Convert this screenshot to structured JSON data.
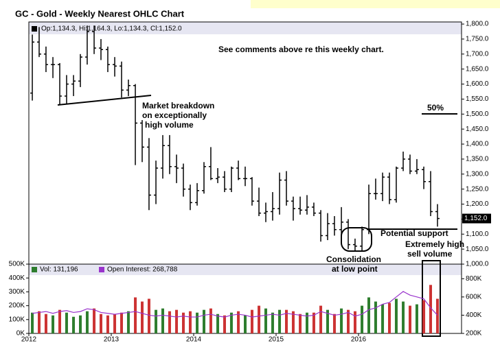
{
  "chart_data": [
    {
      "type": "ohlc",
      "title": "GC - Gold - Weekly Nearest OHLC Chart",
      "info": "Op:1,134.3, Hi:1,164.3, Lo:1,134.3, Cl:1,152.0",
      "price_tag": "1,152.0",
      "color": "#000000",
      "xlim": [
        2012,
        2017.25
      ],
      "ylim": [
        1000,
        1807
      ],
      "yticks": [
        {
          "value": 1000,
          "label": "1,000.0"
        },
        {
          "value": 1050,
          "label": "1,050.0"
        },
        {
          "value": 1100,
          "label": "1,100.0"
        },
        {
          "value": 1150,
          "label": "1,150.0"
        },
        {
          "value": 1200,
          "label": "1,200.0"
        },
        {
          "value": 1250,
          "label": "1,250.0"
        },
        {
          "value": 1300,
          "label": "1,300.0"
        },
        {
          "value": 1350,
          "label": "1,350.0"
        },
        {
          "value": 1400,
          "label": "1,400.0"
        },
        {
          "value": 1450,
          "label": "1,450.0"
        },
        {
          "value": 1500,
          "label": "1,500.0"
        },
        {
          "value": 1550,
          "label": "1,550.0"
        },
        {
          "value": 1600,
          "label": "1,600.0"
        },
        {
          "value": 1650,
          "label": "1,650.0"
        },
        {
          "value": 1700,
          "label": "1,700.0"
        },
        {
          "value": 1750,
          "label": "1,750.0"
        },
        {
          "value": 1800,
          "label": "1,800.0"
        }
      ],
      "x": [
        2012.042,
        2012.125,
        2012.208,
        2012.292,
        2012.375,
        2012.458,
        2012.542,
        2012.625,
        2012.708,
        2012.792,
        2012.875,
        2012.958,
        2013.042,
        2013.125,
        2013.208,
        2013.292,
        2013.375,
        2013.458,
        2013.542,
        2013.625,
        2013.708,
        2013.792,
        2013.875,
        2013.958,
        2014.042,
        2014.125,
        2014.208,
        2014.292,
        2014.375,
        2014.458,
        2014.542,
        2014.625,
        2014.708,
        2014.792,
        2014.875,
        2014.958,
        2015.042,
        2015.125,
        2015.208,
        2015.292,
        2015.375,
        2015.458,
        2015.542,
        2015.625,
        2015.708,
        2015.792,
        2015.875,
        2015.958,
        2016.042,
        2016.125,
        2016.208,
        2016.292,
        2016.375,
        2016.458,
        2016.542,
        2016.625,
        2016.708,
        2016.792,
        2016.875,
        2016.958
      ],
      "open": [
        1570,
        1740,
        1700,
        1665,
        1665,
        1560,
        1600,
        1610,
        1690,
        1775,
        1720,
        1715,
        1665,
        1660,
        1580,
        1595,
        1470,
        1390,
        1230,
        1320,
        1395,
        1325,
        1320,
        1250,
        1205,
        1245,
        1325,
        1285,
        1290,
        1250,
        1320,
        1285,
        1285,
        1210,
        1170,
        1175,
        1185,
        1280,
        1210,
        1185,
        1180,
        1190,
        1170,
        1095,
        1135,
        1115,
        1140,
        1065,
        1060,
        1115,
        1235,
        1235,
        1290,
        1215,
        1320,
        1350,
        1310,
        1315,
        1275,
        1175
      ],
      "high": [
        1765,
        1790,
        1725,
        1690,
        1670,
        1630,
        1630,
        1700,
        1795,
        1795,
        1750,
        1725,
        1690,
        1675,
        1615,
        1600,
        1480,
        1420,
        1345,
        1430,
        1430,
        1365,
        1335,
        1265,
        1270,
        1340,
        1390,
        1320,
        1310,
        1325,
        1345,
        1325,
        1290,
        1255,
        1205,
        1240,
        1305,
        1310,
        1225,
        1225,
        1230,
        1205,
        1180,
        1170,
        1160,
        1190,
        1150,
        1085,
        1125,
        1265,
        1285,
        1305,
        1305,
        1325,
        1375,
        1365,
        1350,
        1325,
        1310,
        1200
      ],
      "low": [
        1545,
        1690,
        1640,
        1620,
        1530,
        1535,
        1560,
        1590,
        1665,
        1700,
        1680,
        1640,
        1625,
        1555,
        1560,
        1330,
        1340,
        1180,
        1200,
        1285,
        1300,
        1270,
        1225,
        1180,
        1195,
        1235,
        1280,
        1270,
        1240,
        1240,
        1280,
        1260,
        1195,
        1160,
        1140,
        1145,
        1165,
        1195,
        1145,
        1165,
        1165,
        1160,
        1075,
        1080,
        1095,
        1095,
        1050,
        1045,
        1045,
        1100,
        1215,
        1210,
        1200,
        1205,
        1310,
        1300,
        1300,
        1250,
        1160,
        1125
      ],
      "close": [
        1740,
        1700,
        1665,
        1665,
        1560,
        1600,
        1610,
        1690,
        1775,
        1720,
        1715,
        1665,
        1660,
        1580,
        1595,
        1470,
        1390,
        1230,
        1320,
        1395,
        1325,
        1320,
        1250,
        1205,
        1245,
        1325,
        1285,
        1290,
        1250,
        1320,
        1285,
        1285,
        1210,
        1170,
        1175,
        1185,
        1280,
        1210,
        1185,
        1180,
        1190,
        1170,
        1095,
        1135,
        1115,
        1140,
        1065,
        1060,
        1115,
        1235,
        1235,
        1290,
        1215,
        1320,
        1350,
        1310,
        1315,
        1275,
        1175,
        1152
      ],
      "annotations": [
        "See comments above re this weekly chart.",
        "Market breakdown",
        "on exceptionally",
        "high volume",
        "50%",
        "Potential support",
        "Consolidation",
        "at low point",
        "Extremely high",
        "sell volume"
      ]
    },
    {
      "type": "volume",
      "xlim": [
        2012,
        2017.25
      ],
      "xticks": [
        2012,
        2013,
        2014,
        2015,
        2016
      ],
      "ylim": [
        0,
        500000
      ],
      "yticks": [
        {
          "value": 0,
          "label": "0K"
        },
        {
          "value": 100000,
          "label": "100K"
        },
        {
          "value": 200000,
          "label": "200K"
        },
        {
          "value": 300000,
          "label": "300K"
        },
        {
          "value": 400000,
          "label": "400K"
        },
        {
          "value": 500000,
          "label": "500K"
        }
      ],
      "y2lim": [
        200000,
        960000
      ],
      "y2ticks": [
        {
          "value": 200000,
          "label": "200K"
        },
        {
          "value": 400000,
          "label": "400K"
        },
        {
          "value": 600000,
          "label": "600K"
        },
        {
          "value": 800000,
          "label": "800K"
        }
      ],
      "series": [
        {
          "name": "Vol: 131,196",
          "up_color": "#2e7d2e",
          "down_color": "#cc3333",
          "color": "#2e7d2e",
          "values": [
            150000,
            160000,
            140000,
            130000,
            170000,
            150000,
            120000,
            130000,
            160000,
            180000,
            140000,
            130000,
            140000,
            150000,
            160000,
            260000,
            230000,
            250000,
            170000,
            180000,
            160000,
            170000,
            150000,
            160000,
            150000,
            170000,
            180000,
            140000,
            130000,
            150000,
            160000,
            130000,
            170000,
            200000,
            180000,
            150000,
            170000,
            170000,
            160000,
            140000,
            150000,
            150000,
            200000,
            170000,
            140000,
            180000,
            170000,
            160000,
            200000,
            260000,
            230000,
            210000,
            220000,
            250000,
            230000,
            200000,
            210000,
            240000,
            350000,
            250000
          ]
        },
        {
          "name": "Open Interest: 268,788",
          "color": "#9933cc",
          "axis": "y2",
          "values": [
            420000,
            430000,
            440000,
            420000,
            440000,
            450000,
            430000,
            440000,
            470000,
            460000,
            430000,
            420000,
            410000,
            420000,
            430000,
            440000,
            420000,
            400000,
            390000,
            400000,
            390000,
            380000,
            390000,
            380000,
            380000,
            400000,
            410000,
            390000,
            380000,
            400000,
            410000,
            400000,
            380000,
            390000,
            400000,
            410000,
            400000,
            420000,
            410000,
            400000,
            390000,
            400000,
            440000,
            420000,
            400000,
            410000,
            430000,
            390000,
            410000,
            460000,
            480000,
            520000,
            540000,
            600000,
            660000,
            620000,
            600000,
            580000,
            480000,
            400000
          ]
        }
      ]
    }
  ]
}
